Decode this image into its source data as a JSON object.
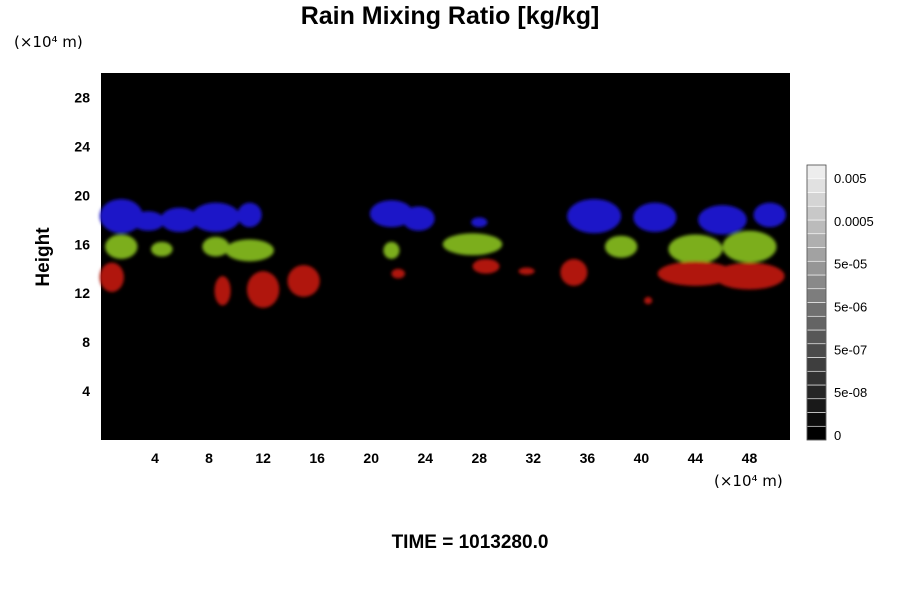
{
  "chart_data": {
    "type": "heatmap",
    "title": "Rain Mixing Ratio [kg/kg]",
    "ylabel": "Height",
    "x_unit": "(×10⁴ m)",
    "y_unit": "(×10⁴ m)",
    "x_ticks": [
      "4",
      "8",
      "12",
      "16",
      "20",
      "24",
      "28",
      "32",
      "36",
      "40",
      "44",
      "48"
    ],
    "y_ticks": [
      "4",
      "8",
      "12",
      "16",
      "20",
      "24",
      "28"
    ],
    "xlim": [
      0,
      51
    ],
    "ylim": [
      0,
      30
    ],
    "colorbar": {
      "labels": [
        "0.005",
        "0.0005",
        "5e-05",
        "5e-06",
        "5e-07",
        "5e-08",
        "0"
      ],
      "background": "#000000"
    },
    "series": [
      {
        "color": "#1a14c8",
        "blobs": [
          {
            "x": 1.5,
            "y": 18.3,
            "rx": 1.6,
            "ry": 1.4
          },
          {
            "x": 3.5,
            "y": 17.9,
            "rx": 1.2,
            "ry": 0.8
          },
          {
            "x": 5.8,
            "y": 18.0,
            "rx": 1.4,
            "ry": 1.0
          },
          {
            "x": 8.5,
            "y": 18.2,
            "rx": 1.8,
            "ry": 1.2
          },
          {
            "x": 11.0,
            "y": 18.4,
            "rx": 0.9,
            "ry": 1.0
          },
          {
            "x": 21.5,
            "y": 18.5,
            "rx": 1.6,
            "ry": 1.1
          },
          {
            "x": 23.5,
            "y": 18.1,
            "rx": 1.2,
            "ry": 1.0
          },
          {
            "x": 28.0,
            "y": 17.8,
            "rx": 0.6,
            "ry": 0.4
          },
          {
            "x": 36.5,
            "y": 18.3,
            "rx": 2.0,
            "ry": 1.4
          },
          {
            "x": 41.0,
            "y": 18.2,
            "rx": 1.6,
            "ry": 1.2
          },
          {
            "x": 46.0,
            "y": 18.0,
            "rx": 1.8,
            "ry": 1.2
          },
          {
            "x": 49.5,
            "y": 18.4,
            "rx": 1.2,
            "ry": 1.0
          }
        ]
      },
      {
        "color": "#7cae1c",
        "blobs": [
          {
            "x": 1.5,
            "y": 15.8,
            "rx": 1.2,
            "ry": 1.0
          },
          {
            "x": 4.5,
            "y": 15.6,
            "rx": 0.8,
            "ry": 0.6
          },
          {
            "x": 8.5,
            "y": 15.8,
            "rx": 1.0,
            "ry": 0.8
          },
          {
            "x": 11.0,
            "y": 15.5,
            "rx": 1.8,
            "ry": 0.9
          },
          {
            "x": 21.5,
            "y": 15.5,
            "rx": 0.6,
            "ry": 0.7
          },
          {
            "x": 27.5,
            "y": 16.0,
            "rx": 2.2,
            "ry": 0.9
          },
          {
            "x": 38.5,
            "y": 15.8,
            "rx": 1.2,
            "ry": 0.9
          },
          {
            "x": 44.0,
            "y": 15.6,
            "rx": 2.0,
            "ry": 1.2
          },
          {
            "x": 48.0,
            "y": 15.8,
            "rx": 2.0,
            "ry": 1.3
          }
        ]
      },
      {
        "color": "#b0140e",
        "blobs": [
          {
            "x": 0.8,
            "y": 13.3,
            "rx": 0.9,
            "ry": 1.2
          },
          {
            "x": 9.0,
            "y": 12.2,
            "rx": 0.6,
            "ry": 1.2
          },
          {
            "x": 12.0,
            "y": 12.3,
            "rx": 1.2,
            "ry": 1.5
          },
          {
            "x": 12.0,
            "y": 11.3,
            "rx": 0.7,
            "ry": 0.4
          },
          {
            "x": 15.0,
            "y": 13.0,
            "rx": 1.2,
            "ry": 1.3
          },
          {
            "x": 22.0,
            "y": 13.6,
            "rx": 0.5,
            "ry": 0.4
          },
          {
            "x": 28.5,
            "y": 14.2,
            "rx": 1.0,
            "ry": 0.6
          },
          {
            "x": 31.5,
            "y": 13.8,
            "rx": 0.6,
            "ry": 0.3
          },
          {
            "x": 35.0,
            "y": 13.7,
            "rx": 1.0,
            "ry": 1.1
          },
          {
            "x": 40.5,
            "y": 11.4,
            "rx": 0.3,
            "ry": 0.3
          },
          {
            "x": 44.0,
            "y": 13.6,
            "rx": 2.8,
            "ry": 1.0
          },
          {
            "x": 48.0,
            "y": 13.4,
            "rx": 2.6,
            "ry": 1.1
          }
        ]
      }
    ]
  },
  "time_label": "TIME = 1013280.0"
}
